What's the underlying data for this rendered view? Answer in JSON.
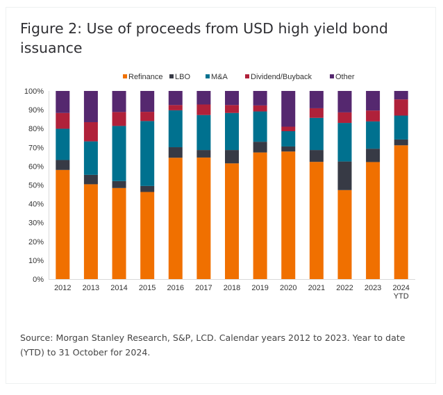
{
  "title": "Figure 2: Use of proceeds from USD high yield bond issuance",
  "source": "Source: Morgan Stanley Research, S&P, LCD. Calendar years 2012 to 2023. Year to date (YTD) to 31 October for 2024.",
  "chart_data": {
    "type": "bar",
    "stacked": true,
    "title": "",
    "xlabel": "",
    "ylabel": "",
    "ylim": [
      0,
      100
    ],
    "y_ticks": [
      "0%",
      "10%",
      "20%",
      "30%",
      "40%",
      "50%",
      "60%",
      "70%",
      "80%",
      "90%",
      "100%"
    ],
    "grid": false,
    "legend_position": "top",
    "categories": [
      "2012",
      "2013",
      "2014",
      "2015",
      "2016",
      "2017",
      "2018",
      "2019",
      "2020",
      "2021",
      "2022",
      "2023",
      "2024 YTD"
    ],
    "series": [
      {
        "name": "Refinance",
        "color": "#f07000",
        "values": [
          58.0,
          50.4,
          48.4,
          46.3,
          64.5,
          64.6,
          61.5,
          67.3,
          67.8,
          62.3,
          47.3,
          62.2,
          71.1
        ]
      },
      {
        "name": "LBO",
        "color": "#373a45",
        "values": [
          5.3,
          5.0,
          3.7,
          3.2,
          5.6,
          4.0,
          7.1,
          5.7,
          2.7,
          6.3,
          15.2,
          7.1,
          3.1
        ]
      },
      {
        "name": "M&A",
        "color": "#00718f",
        "values": [
          16.6,
          17.8,
          29.3,
          34.5,
          19.6,
          18.6,
          19.7,
          16.1,
          8.1,
          17.1,
          20.5,
          14.5,
          12.7
        ]
      },
      {
        "name": "Dividend/Buyback",
        "color": "#b0213a",
        "values": [
          8.4,
          10.2,
          7.4,
          4.9,
          2.8,
          5.6,
          4.2,
          3.2,
          2.4,
          5.1,
          5.6,
          5.8,
          8.6
        ]
      },
      {
        "name": "Other",
        "color": "#55286f",
        "values": [
          11.7,
          16.6,
          11.2,
          11.1,
          7.5,
          7.2,
          7.5,
          7.7,
          19.0,
          9.2,
          11.4,
          10.4,
          4.5
        ]
      }
    ]
  }
}
